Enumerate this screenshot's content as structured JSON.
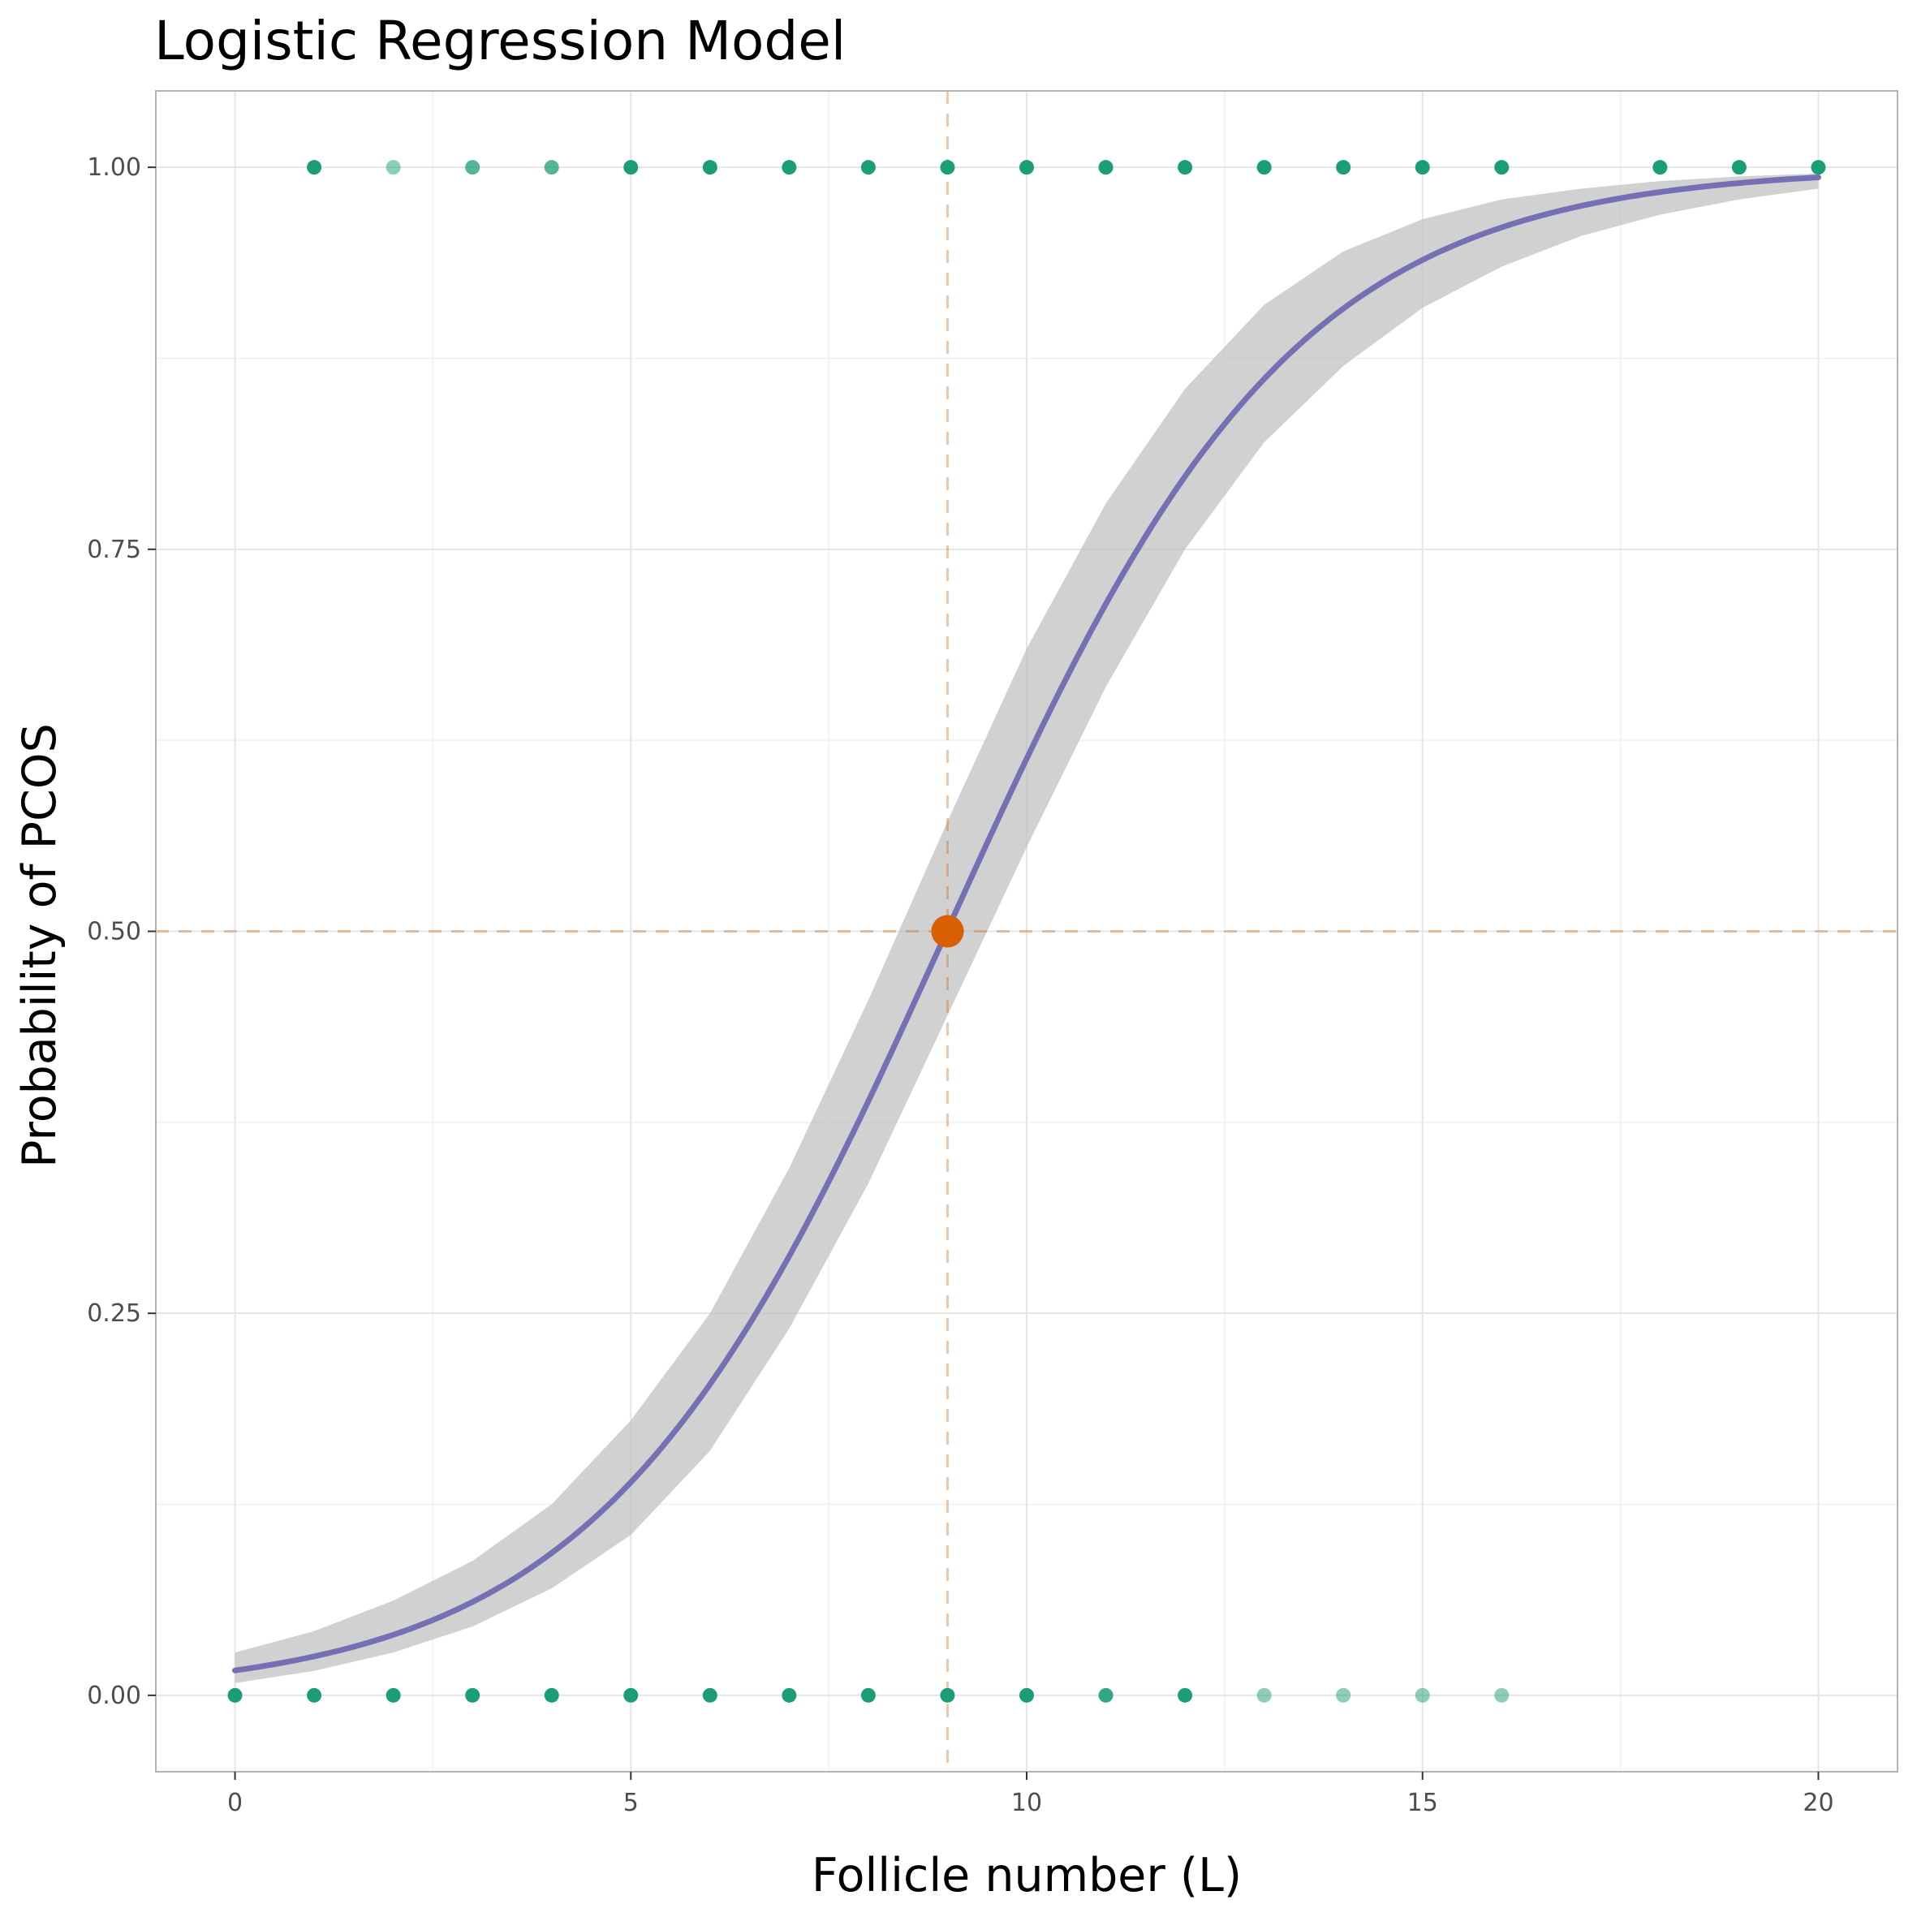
{
  "chart_data": {
    "type": "scatter",
    "title": "Logistic Regression Model",
    "xlabel": "Follicle number (L)",
    "ylabel": "Probability of PCOS",
    "xlim": [
      -1,
      21
    ],
    "ylim": [
      -0.05,
      1.05
    ],
    "x_ticks": [
      0,
      5,
      10,
      15,
      20
    ],
    "x_tick_labels": [
      "0",
      "5",
      "10",
      "15",
      "20"
    ],
    "y_ticks": [
      0,
      0.25,
      0.5,
      0.75,
      1
    ],
    "y_tick_labels": [
      "0.00",
      "0.25",
      "0.50",
      "0.75",
      "1.00"
    ],
    "grid": true,
    "colors": {
      "points": "#1b9e77",
      "curve": "#7570b3",
      "ribbon": "#bebebe",
      "threshold": "#d95f02",
      "grid": "#e5e5e5",
      "panel_border": "#b3b3b3"
    },
    "logistic_fit": {
      "intercept": -4.1,
      "slope": 0.456,
      "x_range": [
        0,
        20
      ],
      "ci_lower": [
        {
          "x": 0,
          "y": 0.008
        },
        {
          "x": 1,
          "y": 0.016
        },
        {
          "x": 2,
          "y": 0.028
        },
        {
          "x": 3,
          "y": 0.045
        },
        {
          "x": 4,
          "y": 0.07
        },
        {
          "x": 5,
          "y": 0.105
        },
        {
          "x": 6,
          "y": 0.16
        },
        {
          "x": 7,
          "y": 0.24
        },
        {
          "x": 8,
          "y": 0.335
        },
        {
          "x": 9,
          "y": 0.445
        },
        {
          "x": 10,
          "y": 0.555
        },
        {
          "x": 11,
          "y": 0.66
        },
        {
          "x": 12,
          "y": 0.75
        },
        {
          "x": 13,
          "y": 0.82
        },
        {
          "x": 14,
          "y": 0.87
        },
        {
          "x": 15,
          "y": 0.908
        },
        {
          "x": 16,
          "y": 0.935
        },
        {
          "x": 17,
          "y": 0.955
        },
        {
          "x": 18,
          "y": 0.969
        },
        {
          "x": 19,
          "y": 0.979
        },
        {
          "x": 20,
          "y": 0.986
        }
      ],
      "ci_upper": [
        {
          "x": 0,
          "y": 0.028
        },
        {
          "x": 1,
          "y": 0.042
        },
        {
          "x": 2,
          "y": 0.062
        },
        {
          "x": 3,
          "y": 0.088
        },
        {
          "x": 4,
          "y": 0.125
        },
        {
          "x": 5,
          "y": 0.18
        },
        {
          "x": 6,
          "y": 0.25
        },
        {
          "x": 7,
          "y": 0.345
        },
        {
          "x": 8,
          "y": 0.455
        },
        {
          "x": 9,
          "y": 0.572
        },
        {
          "x": 10,
          "y": 0.685
        },
        {
          "x": 11,
          "y": 0.78
        },
        {
          "x": 12,
          "y": 0.855
        },
        {
          "x": 13,
          "y": 0.91
        },
        {
          "x": 14,
          "y": 0.945
        },
        {
          "x": 15,
          "y": 0.966
        },
        {
          "x": 16,
          "y": 0.979
        },
        {
          "x": 17,
          "y": 0.986
        },
        {
          "x": 18,
          "y": 0.991
        },
        {
          "x": 19,
          "y": 0.994
        },
        {
          "x": 20,
          "y": 0.996
        }
      ]
    },
    "threshold": {
      "x": 9,
      "y": 0.5
    },
    "points": [
      {
        "x": 0,
        "y": 0,
        "alpha": 1.0
      },
      {
        "x": 1,
        "y": 0,
        "alpha": 1.0
      },
      {
        "x": 2,
        "y": 0,
        "alpha": 1.0
      },
      {
        "x": 3,
        "y": 0,
        "alpha": 1.0
      },
      {
        "x": 4,
        "y": 0,
        "alpha": 1.0
      },
      {
        "x": 5,
        "y": 0,
        "alpha": 1.0
      },
      {
        "x": 6,
        "y": 0,
        "alpha": 1.0
      },
      {
        "x": 7,
        "y": 0,
        "alpha": 1.0
      },
      {
        "x": 8,
        "y": 0,
        "alpha": 1.0
      },
      {
        "x": 9,
        "y": 0,
        "alpha": 1.0
      },
      {
        "x": 10,
        "y": 0,
        "alpha": 1.0
      },
      {
        "x": 11,
        "y": 0,
        "alpha": 0.9
      },
      {
        "x": 12,
        "y": 0,
        "alpha": 1.0
      },
      {
        "x": 13,
        "y": 0,
        "alpha": 0.5
      },
      {
        "x": 14,
        "y": 0,
        "alpha": 0.5
      },
      {
        "x": 15,
        "y": 0,
        "alpha": 0.5
      },
      {
        "x": 16,
        "y": 0,
        "alpha": 0.5
      },
      {
        "x": 1,
        "y": 1,
        "alpha": 1.0
      },
      {
        "x": 2,
        "y": 1,
        "alpha": 0.5
      },
      {
        "x": 3,
        "y": 1,
        "alpha": 0.75
      },
      {
        "x": 4,
        "y": 1,
        "alpha": 0.75
      },
      {
        "x": 5,
        "y": 1,
        "alpha": 1.0
      },
      {
        "x": 6,
        "y": 1,
        "alpha": 1.0
      },
      {
        "x": 7,
        "y": 1,
        "alpha": 1.0
      },
      {
        "x": 8,
        "y": 1,
        "alpha": 1.0
      },
      {
        "x": 9,
        "y": 1,
        "alpha": 1.0
      },
      {
        "x": 10,
        "y": 1,
        "alpha": 1.0
      },
      {
        "x": 11,
        "y": 1,
        "alpha": 1.0
      },
      {
        "x": 12,
        "y": 1,
        "alpha": 1.0
      },
      {
        "x": 13,
        "y": 1,
        "alpha": 1.0
      },
      {
        "x": 14,
        "y": 1,
        "alpha": 1.0
      },
      {
        "x": 15,
        "y": 1,
        "alpha": 1.0
      },
      {
        "x": 16,
        "y": 1,
        "alpha": 1.0
      },
      {
        "x": 18,
        "y": 1,
        "alpha": 1.0
      },
      {
        "x": 19,
        "y": 1,
        "alpha": 1.0
      },
      {
        "x": 20,
        "y": 1,
        "alpha": 1.0
      }
    ]
  }
}
